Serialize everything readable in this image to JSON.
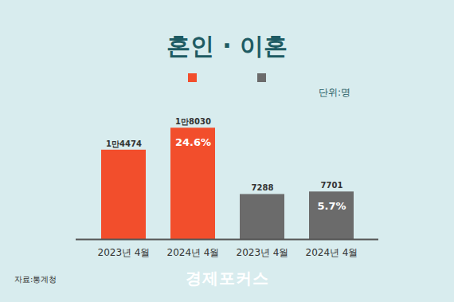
{
  "chart_data": {
    "type": "bar",
    "title": "혼인 · 이혼",
    "categories": [
      "2023년 4월",
      "2024년 4월",
      "2023년 4월",
      "2024년 4월"
    ],
    "values": [
      14474,
      18030,
      7288,
      7701
    ],
    "value_labels": [
      "1만4474",
      "1만8030",
      "7288",
      "7701"
    ],
    "colors": [
      "#f24e2c",
      "#f24e2c",
      "#6b6b6b",
      "#6b6b6b"
    ],
    "annotations": [
      null,
      "24.6%",
      null,
      "5.7%"
    ],
    "unit": "단위:명",
    "source": "자료:통계청",
    "logo": "경제포커스",
    "ylim": [
      0,
      20000
    ],
    "data_labels": true,
    "tick_labels": "x",
    "grid": false
  }
}
